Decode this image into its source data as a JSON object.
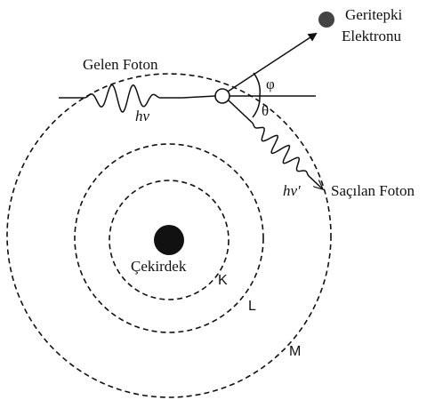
{
  "labels": {
    "electron_line1": "Geritepki",
    "electron_line2": "Elektronu",
    "incoming": "Gelen Foton",
    "incoming_energy": "hv",
    "phi": "φ",
    "theta": "θ",
    "scattered_energy": "hv'",
    "scattered": "Saçılan Foton",
    "nucleus": "Çekirdek",
    "shell_k": "K",
    "shell_l": "L",
    "shell_m": "M"
  }
}
